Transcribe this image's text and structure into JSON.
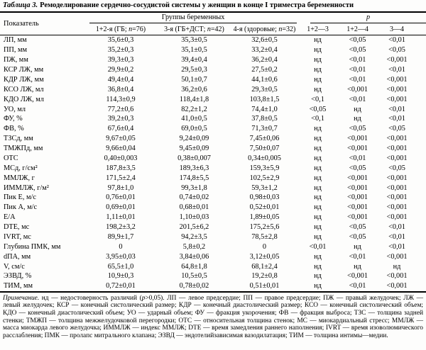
{
  "title": {
    "label": "Таблица 3.",
    "text": "Ремоделирование сердечно-сосудистой системы у женщин в конце I триместра беременности"
  },
  "header": {
    "indicator": "Показатель",
    "groups": "Группы беременных",
    "p": "p",
    "sub": [
      {
        "pre": "1+2-я (ГБ; ",
        "n": "n",
        "post": "=76)"
      },
      {
        "pre": "3-я (ГБ+ДСТ; ",
        "n": "n",
        "post": "=42)"
      },
      {
        "pre": "4-я (здоровые; ",
        "n": "n",
        "post": "=32)"
      }
    ],
    "p_cols": [
      "1+2—3",
      "1+2—4",
      "3—4"
    ]
  },
  "rows": [
    {
      "label": "ЛП, мм",
      "values": [
        "35,6±0,3",
        "35,3±0,5",
        "32,6±0,5",
        "нд",
        "<0,05",
        "<0,01"
      ]
    },
    {
      "label": "ПП, мм",
      "values": [
        "35,2±0,3",
        "35,1±0,5",
        "33,2±0,4",
        "нд",
        "<0,05",
        "<0,05"
      ]
    },
    {
      "label": "ПЖ, мм",
      "values": [
        "39,3±0,3",
        "39,4±0,4",
        "36,2±0,4",
        "нд",
        "<0,01",
        "<0,001"
      ]
    },
    {
      "label": "КСР ЛЖ, мм",
      "values": [
        "29,9±0,2",
        "29,5±0,3",
        "27,5±0,2",
        "нд",
        "<0,01",
        "<0,01"
      ]
    },
    {
      "label": "КДР ЛЖ, мм",
      "values": [
        "49,4±0,4",
        "50,1±0,7",
        "44,1±0,6",
        "нд",
        "<0,01",
        "<0,001"
      ]
    },
    {
      "label": "КСО ЛЖ, мл",
      "values": [
        "36,8±0,4",
        "36,2±0,6",
        "29,3±0,5",
        "нд",
        "<0,001",
        "<0,001"
      ]
    },
    {
      "label": "КДО ЛЖ, мл",
      "values": [
        "114,3±0,9",
        "118,4±1,8",
        "103,8±1,5",
        "<0,1",
        "<0,01",
        "<0,001"
      ]
    },
    {
      "label": "УО, мл",
      "values": [
        "77,2±0,6",
        "82,2±1,2",
        "74,4±1,0",
        "<0,05",
        "нд",
        "<0,01"
      ]
    },
    {
      "label": "ФУ, %",
      "values": [
        "39,2±0,3",
        "41,0±0,5",
        "37,8±0,5",
        "<0,1",
        "нд",
        "<0,01"
      ]
    },
    {
      "label": "ФВ, %",
      "values": [
        "67,6±0,4",
        "69,0±0,5",
        "71,3±0,7",
        "нд",
        "<0,05",
        "<0,05"
      ]
    },
    {
      "label": "ТЗСд, мм",
      "values": [
        "9,67±0,05",
        "9,24±0,09",
        "7,45±0,06",
        "нд",
        "<0,001",
        "<0,001"
      ]
    },
    {
      "label": "ТМЖПд, мм",
      "values": [
        "9,66±0,04",
        "9,45±0,09",
        "7,50±0,07",
        "нд",
        "<0,001",
        "<0,001"
      ]
    },
    {
      "label": "ОТС",
      "values": [
        "0,40±0,003",
        "0,38±0,007",
        "0,34±0,005",
        "нд",
        "<0,01",
        "<0,001"
      ]
    },
    {
      "label": "МСд, г/см²",
      "values": [
        "187,8±3,5",
        "189,3±6,3",
        "159,3±5,9",
        "нд",
        "<0,05",
        "<0,05"
      ]
    },
    {
      "label": "ММЛЖ, г",
      "values": [
        "171,5±2,4",
        "174,8±5,5",
        "102,5±2,9",
        "нд",
        "<0,001",
        "<0,001"
      ]
    },
    {
      "label": "ИММЛЖ, г/м²",
      "values": [
        "97,8±1,0",
        "99,3±1,8",
        "59,3±1,2",
        "нд",
        "<0,001",
        "<0,001"
      ]
    },
    {
      "label": "Пик Е, м/с",
      "values": [
        "0,76±0,01",
        "0,74±0,02",
        "0,98±0,03",
        "нд",
        "<0,001",
        "<0,001"
      ]
    },
    {
      "label": "Пик А, м/с",
      "values": [
        "0,69±0,01",
        "0,68±0,01",
        "0,52±0,01",
        "нд",
        "<0,001",
        "<0,001"
      ]
    },
    {
      "label": "Е/А",
      "values": [
        "1,11±0,01",
        "1,10±0,03",
        "1,89±0,05",
        "нд",
        "<0,001",
        "<0,001"
      ]
    },
    {
      "label": "DTE, мс",
      "values": [
        "198,2±3,2",
        "201,5±6,2",
        "175,2±5,6",
        "нд",
        "<0,05",
        "<0,01"
      ]
    },
    {
      "label": "IVRT, мс",
      "values": [
        "89,9±1,7",
        "94,2±3,5",
        "78,5±2,8",
        "нд",
        "<0,05",
        "<0,01"
      ]
    },
    {
      "label": "Глубина ПМК, мм",
      "values": [
        "0",
        "5,8±0,2",
        "0",
        "<0,01",
        "нд",
        "<0,01"
      ]
    },
    {
      "label": "dПА, мм",
      "values": [
        "3,95±0,03",
        "3,84±0,06",
        "3,12±0,05",
        "нд",
        "<0,01",
        "<0,001"
      ]
    },
    {
      "label": "V, см/с",
      "values": [
        "65,5±1,0",
        "64,8±1,8",
        "68,1±2,4",
        "нд",
        "нд",
        "нд"
      ]
    },
    {
      "label": "ЭЗВД, %",
      "values": [
        "10,9±0,3",
        "10,5±0,5",
        "19,2±0,8",
        "нд",
        "<0,001",
        "<0,001"
      ]
    },
    {
      "label": "ТИМ, мм",
      "values": [
        "0,72±0,01",
        "0,78±0,02",
        "0,51±0,01",
        "нд",
        "<0,01",
        "<0,001"
      ]
    }
  ],
  "footnote": {
    "label": "Примечание.",
    "part1": " нд — недостоверность различий (",
    "p_italic": "p",
    "part2": ">0,05). ЛП — левое предсердие; ПП — правое предсердие; ПЖ — правый желудочек; ЛЖ — левый желудочек; КСР — конечный систолический размер; КДР — конечный диастолический размер; КСО — конечный систолический объем; КДО — конечный диастолический объем; УО — ударный объем; ФУ — фракция укорочения; ФВ — фракция выброса; ТЗС — толщина задней стенки; ТМЖП — толщина межжелудочковой перегородки; ОТС — относительная толщина стенок; МС — миокардиальный стресс; ММЛЖ — масса миокарда левого желудочка; ИММЛЖ — индекс ММЛЖ; DTE — время замедления раннего наполнения; IVRT — время изоволюмического расслабления; ПМК — пролапс митрального клапана; ЭЗВД — эндотелийзависимая вазодилатация; ТИМ — толщина интимы—медии."
  }
}
